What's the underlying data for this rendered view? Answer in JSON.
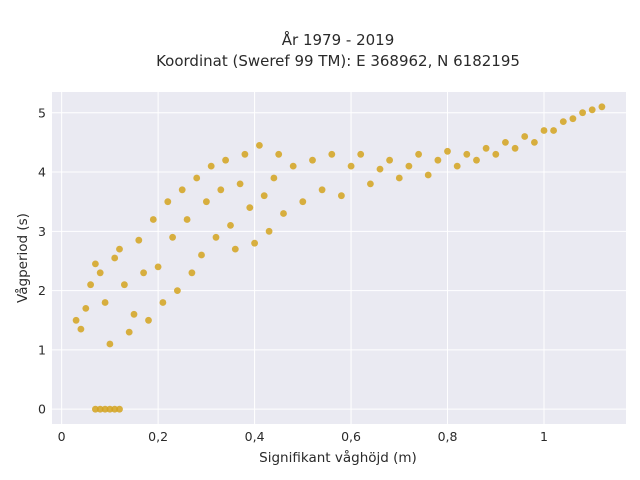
{
  "chart_data": {
    "type": "scatter",
    "title": "År 1979 - 2019",
    "subtitle": "Koordinat (Sweref 99 TM): E 368962, N 6182195",
    "xlabel": "Signifikant våghöjd (m)",
    "ylabel": "Vågperiod (s)",
    "xlim": [
      -0.02,
      1.17
    ],
    "ylim": [
      -0.25,
      5.35
    ],
    "x_ticks": [
      0,
      0.2,
      0.4,
      0.6,
      0.8,
      1
    ],
    "x_tick_labels": [
      "0",
      "0,2",
      "0,4",
      "0,6",
      "0,8",
      "1"
    ],
    "y_ticks": [
      0,
      1,
      2,
      3,
      4,
      5
    ],
    "y_tick_labels": [
      "0",
      "1",
      "2",
      "3",
      "4",
      "5"
    ],
    "grid": true,
    "legend": "none",
    "marker_color": "#D4A31E",
    "plot_background": "#EAEAF2",
    "series": [
      {
        "points": [
          [
            0.03,
            1.5
          ],
          [
            0.04,
            1.35
          ],
          [
            0.05,
            1.7
          ],
          [
            0.06,
            2.1
          ],
          [
            0.07,
            2.45
          ],
          [
            0.08,
            2.3
          ],
          [
            0.09,
            1.8
          ],
          [
            0.1,
            1.1
          ],
          [
            0.11,
            2.55
          ],
          [
            0.12,
            2.7
          ],
          [
            0.13,
            2.1
          ],
          [
            0.14,
            1.3
          ],
          [
            0.15,
            1.6
          ],
          [
            0.16,
            2.85
          ],
          [
            0.17,
            2.3
          ],
          [
            0.18,
            1.5
          ],
          [
            0.19,
            3.2
          ],
          [
            0.2,
            2.4
          ],
          [
            0.21,
            1.8
          ],
          [
            0.22,
            3.5
          ],
          [
            0.23,
            2.9
          ],
          [
            0.24,
            2.0
          ],
          [
            0.25,
            3.7
          ],
          [
            0.26,
            3.2
          ],
          [
            0.27,
            2.3
          ],
          [
            0.28,
            3.9
          ],
          [
            0.29,
            2.6
          ],
          [
            0.3,
            3.5
          ],
          [
            0.31,
            4.1
          ],
          [
            0.32,
            2.9
          ],
          [
            0.33,
            3.7
          ],
          [
            0.34,
            4.2
          ],
          [
            0.35,
            3.1
          ],
          [
            0.36,
            2.7
          ],
          [
            0.37,
            3.8
          ],
          [
            0.38,
            4.3
          ],
          [
            0.39,
            3.4
          ],
          [
            0.4,
            2.8
          ],
          [
            0.41,
            4.45
          ],
          [
            0.42,
            3.6
          ],
          [
            0.43,
            3.0
          ],
          [
            0.44,
            3.9
          ],
          [
            0.45,
            4.3
          ],
          [
            0.46,
            3.3
          ],
          [
            0.48,
            4.1
          ],
          [
            0.5,
            3.5
          ],
          [
            0.52,
            4.2
          ],
          [
            0.54,
            3.7
          ],
          [
            0.56,
            4.3
          ],
          [
            0.58,
            3.6
          ],
          [
            0.6,
            4.1
          ],
          [
            0.62,
            4.3
          ],
          [
            0.64,
            3.8
          ],
          [
            0.66,
            4.05
          ],
          [
            0.68,
            4.2
          ],
          [
            0.7,
            3.9
          ],
          [
            0.72,
            4.1
          ],
          [
            0.74,
            4.3
          ],
          [
            0.76,
            3.95
          ],
          [
            0.78,
            4.2
          ],
          [
            0.8,
            4.35
          ],
          [
            0.82,
            4.1
          ],
          [
            0.84,
            4.3
          ],
          [
            0.86,
            4.2
          ],
          [
            0.88,
            4.4
          ],
          [
            0.9,
            4.3
          ],
          [
            0.92,
            4.5
          ],
          [
            0.94,
            4.4
          ],
          [
            0.96,
            4.6
          ],
          [
            0.98,
            4.5
          ],
          [
            1.0,
            4.7
          ],
          [
            1.02,
            4.7
          ],
          [
            1.04,
            4.85
          ],
          [
            1.06,
            4.9
          ],
          [
            1.08,
            5.0
          ],
          [
            1.1,
            5.05
          ],
          [
            1.12,
            5.1
          ],
          [
            0.07,
            0.0
          ],
          [
            0.08,
            0.0
          ],
          [
            0.09,
            0.0
          ],
          [
            0.1,
            0.0
          ],
          [
            0.11,
            0.0
          ],
          [
            0.12,
            0.0
          ]
        ]
      }
    ]
  }
}
